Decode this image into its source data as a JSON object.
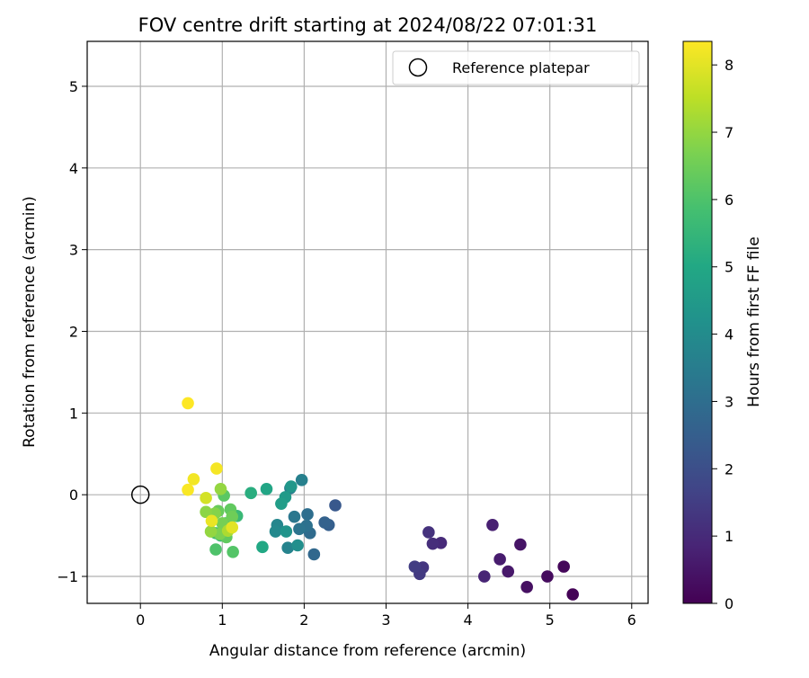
{
  "chart_data": {
    "type": "scatter",
    "title": "FOV centre drift starting at 2024/08/22 07:01:31",
    "xlabel": "Angular distance from reference (arcmin)",
    "ylabel": "Rotation from reference (arcmin)",
    "xlim": [
      -0.65,
      6.2
    ],
    "ylim": [
      -1.33,
      5.55
    ],
    "xticks": [
      0,
      1,
      2,
      3,
      4,
      5,
      6
    ],
    "yticks": [
      -1,
      0,
      1,
      2,
      3,
      4,
      5
    ],
    "xtick_labels": [
      "0",
      "1",
      "2",
      "3",
      "4",
      "5",
      "6"
    ],
    "ytick_labels": [
      "−1",
      "0",
      "1",
      "2",
      "3",
      "4",
      "5"
    ],
    "grid": true,
    "legend": {
      "placement": "top-right",
      "entries": [
        "Reference platepar"
      ]
    },
    "colorbar": {
      "label": "Hours from first FF file",
      "colormap": "viridis",
      "range": [
        0,
        8.35
      ],
      "ticks": [
        0,
        1,
        2,
        3,
        4,
        5,
        6,
        7,
        8
      ],
      "tick_labels": [
        "0",
        "1",
        "2",
        "3",
        "4",
        "5",
        "6",
        "7",
        "8"
      ]
    },
    "reference_point": {
      "x": 0,
      "y": 0
    },
    "points": [
      {
        "x": 5.28,
        "y": -1.22,
        "hours": 0.05
      },
      {
        "x": 5.17,
        "y": -0.88,
        "hours": 0.15
      },
      {
        "x": 4.97,
        "y": -1.0,
        "hours": 0.25
      },
      {
        "x": 4.72,
        "y": -1.13,
        "hours": 0.35
      },
      {
        "x": 4.64,
        "y": -0.61,
        "hours": 0.45
      },
      {
        "x": 4.49,
        "y": -0.94,
        "hours": 0.55
      },
      {
        "x": 4.39,
        "y": -0.79,
        "hours": 0.65
      },
      {
        "x": 4.3,
        "y": -0.37,
        "hours": 0.75
      },
      {
        "x": 4.2,
        "y": -1.0,
        "hours": 0.85
      },
      {
        "x": 3.67,
        "y": -0.59,
        "hours": 1.0
      },
      {
        "x": 3.57,
        "y": -0.6,
        "hours": 1.1
      },
      {
        "x": 3.52,
        "y": -0.46,
        "hours": 1.2
      },
      {
        "x": 3.45,
        "y": -0.89,
        "hours": 1.3
      },
      {
        "x": 3.41,
        "y": -0.97,
        "hours": 1.4
      },
      {
        "x": 3.35,
        "y": -0.88,
        "hours": 1.5
      },
      {
        "x": 2.38,
        "y": -0.13,
        "hours": 2.3
      },
      {
        "x": 2.3,
        "y": -0.37,
        "hours": 2.5
      },
      {
        "x": 2.25,
        "y": -0.34,
        "hours": 2.6
      },
      {
        "x": 2.12,
        "y": -0.73,
        "hours": 2.8
      },
      {
        "x": 2.07,
        "y": -0.47,
        "hours": 2.9
      },
      {
        "x": 2.04,
        "y": -0.24,
        "hours": 3.0
      },
      {
        "x": 2.03,
        "y": -0.38,
        "hours": 3.1
      },
      {
        "x": 1.94,
        "y": -0.42,
        "hours": 3.2
      },
      {
        "x": 1.88,
        "y": -0.27,
        "hours": 3.3
      },
      {
        "x": 1.83,
        "y": 0.08,
        "hours": 3.4
      },
      {
        "x": 1.97,
        "y": 0.18,
        "hours": 3.6
      },
      {
        "x": 1.8,
        "y": -0.65,
        "hours": 3.7
      },
      {
        "x": 1.67,
        "y": -0.37,
        "hours": 3.8
      },
      {
        "x": 1.65,
        "y": -0.45,
        "hours": 3.9
      },
      {
        "x": 1.92,
        "y": -0.62,
        "hours": 4.1
      },
      {
        "x": 1.78,
        "y": -0.45,
        "hours": 4.3
      },
      {
        "x": 1.84,
        "y": 0.1,
        "hours": 4.4
      },
      {
        "x": 1.77,
        "y": -0.03,
        "hours": 4.5
      },
      {
        "x": 1.72,
        "y": -0.11,
        "hours": 4.6
      },
      {
        "x": 1.54,
        "y": 0.07,
        "hours": 4.9
      },
      {
        "x": 1.49,
        "y": -0.64,
        "hours": 5.0
      },
      {
        "x": 1.35,
        "y": 0.02,
        "hours": 5.2
      },
      {
        "x": 1.18,
        "y": -0.26,
        "hours": 5.6
      },
      {
        "x": 0.98,
        "y": -0.5,
        "hours": 5.7
      },
      {
        "x": 0.92,
        "y": -0.47,
        "hours": 5.8
      },
      {
        "x": 1.04,
        "y": -0.35,
        "hours": 5.9
      },
      {
        "x": 0.92,
        "y": -0.67,
        "hours": 6.0
      },
      {
        "x": 1.13,
        "y": -0.7,
        "hours": 6.1
      },
      {
        "x": 1.02,
        "y": -0.01,
        "hours": 6.2
      },
      {
        "x": 1.1,
        "y": -0.18,
        "hours": 6.3
      },
      {
        "x": 1.05,
        "y": -0.52,
        "hours": 6.3
      },
      {
        "x": 0.95,
        "y": -0.2,
        "hours": 6.4
      },
      {
        "x": 1.12,
        "y": -0.27,
        "hours": 6.5
      },
      {
        "x": 1.0,
        "y": -0.35,
        "hours": 6.6
      },
      {
        "x": 0.97,
        "y": -0.48,
        "hours": 6.7
      },
      {
        "x": 0.91,
        "y": -0.23,
        "hours": 6.8
      },
      {
        "x": 0.8,
        "y": -0.21,
        "hours": 6.9
      },
      {
        "x": 0.98,
        "y": 0.07,
        "hours": 7.0
      },
      {
        "x": 0.86,
        "y": -0.45,
        "hours": 7.0
      },
      {
        "x": 1.07,
        "y": -0.44,
        "hours": 7.3
      },
      {
        "x": 0.8,
        "y": -0.04,
        "hours": 7.8
      },
      {
        "x": 1.12,
        "y": -0.4,
        "hours": 8.0
      },
      {
        "x": 0.87,
        "y": -0.32,
        "hours": 8.1
      },
      {
        "x": 0.65,
        "y": 0.19,
        "hours": 8.2
      },
      {
        "x": 0.93,
        "y": 0.32,
        "hours": 8.25
      },
      {
        "x": 0.58,
        "y": 0.06,
        "hours": 8.3
      },
      {
        "x": 0.58,
        "y": 1.12,
        "hours": 8.35
      }
    ]
  }
}
